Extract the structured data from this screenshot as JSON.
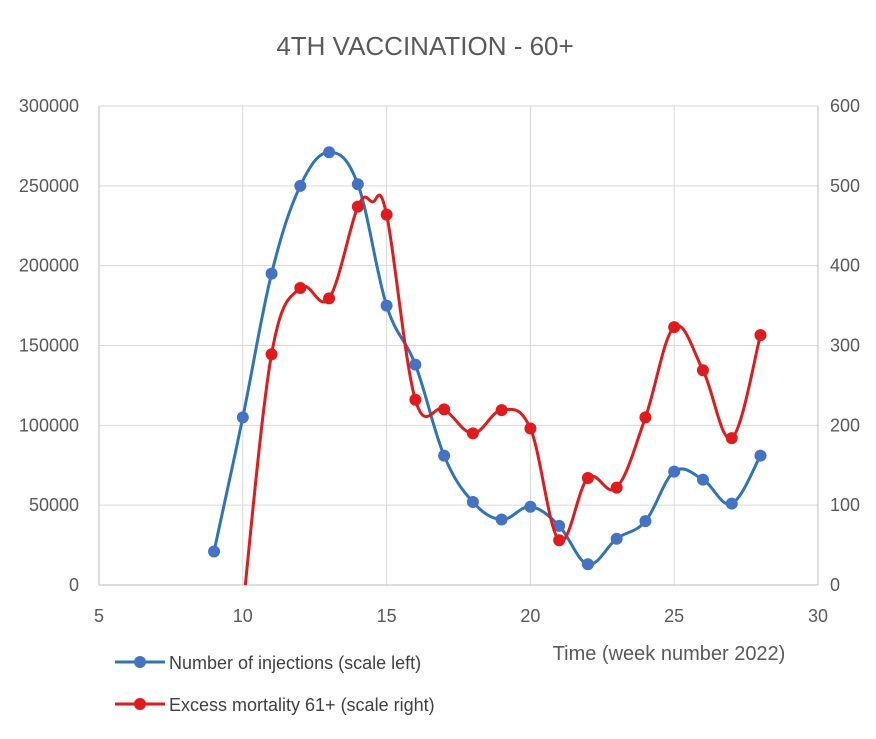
{
  "chart_data": {
    "type": "line",
    "title": "4TH VACCINATION - 60+",
    "xlabel": "Time (week number 2022)",
    "ylabel": "",
    "y2label": "",
    "xlim": [
      5,
      30
    ],
    "ylim": [
      0,
      300000
    ],
    "y2lim": [
      0,
      600
    ],
    "x_ticks": [
      5,
      10,
      15,
      20,
      25,
      30
    ],
    "y_ticks": [
      0,
      50000,
      100000,
      150000,
      200000,
      250000,
      300000
    ],
    "y2_ticks": [
      0,
      100,
      200,
      300,
      400,
      500,
      600
    ],
    "grid": true,
    "smooth": true,
    "legend_position": "bottom-left",
    "series": [
      {
        "name": "Number of injections (scale left)",
        "axis": "left",
        "color": "#2e75b6",
        "marker_color": "#4472c4",
        "x": [
          9,
          10,
          11,
          12,
          13,
          14,
          15,
          16,
          17,
          18,
          19,
          20,
          21,
          22,
          23,
          24,
          25,
          26,
          27,
          28
        ],
        "values": [
          21000,
          105000,
          195000,
          250000,
          271000,
          251000,
          175000,
          138000,
          81000,
          52000,
          41000,
          49000,
          37000,
          13000,
          29000,
          40000,
          71000,
          66000,
          51000,
          81000
        ]
      },
      {
        "name": "Excess mortality 61+ (scale right)",
        "axis": "right",
        "color": "#e31a1c",
        "marker_color": "#e31a1c",
        "x": [
          10,
          11,
          12,
          13,
          14,
          14.5,
          15,
          16,
          17,
          18,
          19,
          20,
          21,
          22,
          23,
          24,
          25,
          26,
          27,
          28
        ],
        "values": [
          -30,
          289,
          372,
          359,
          474,
          480,
          464,
          232,
          220,
          190,
          219,
          196,
          56,
          134,
          122,
          210,
          323,
          269,
          184,
          313
        ],
        "marker_mask": [
          false,
          true,
          true,
          true,
          true,
          false,
          true,
          true,
          true,
          true,
          true,
          true,
          true,
          true,
          true,
          true,
          true,
          true,
          true,
          true
        ]
      }
    ]
  }
}
